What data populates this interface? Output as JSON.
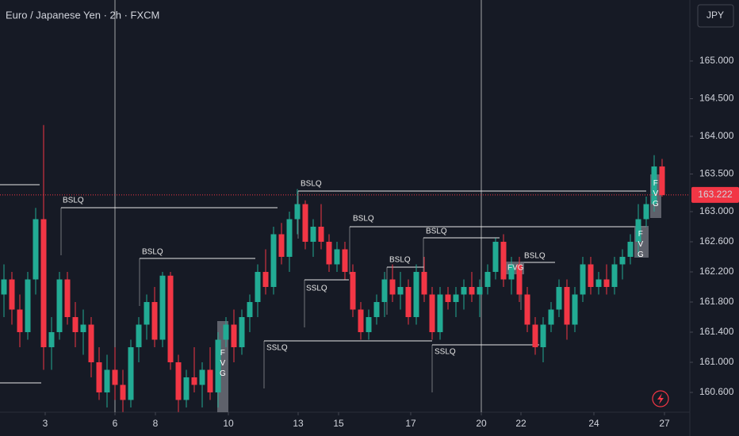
{
  "chart_data": {
    "type": "candlestick",
    "title": "Euro / Japanese Yen · 2h · FXCM",
    "currency": "JPY",
    "x": [
      0,
      1,
      2,
      3,
      4,
      5,
      6,
      7,
      8,
      9,
      10,
      11,
      12,
      13,
      14,
      15,
      16,
      17,
      18,
      19,
      20,
      21,
      22,
      23,
      24,
      25,
      26,
      27,
      28,
      29,
      30,
      31,
      32,
      33,
      34,
      35,
      36,
      37,
      38,
      39,
      40,
      41,
      42,
      43,
      44,
      45,
      46,
      47,
      48,
      49,
      50,
      51,
      52,
      53,
      54,
      55,
      56,
      57,
      58,
      59,
      60,
      61,
      62,
      63,
      64,
      65,
      66,
      67,
      68,
      69,
      70,
      71,
      72,
      73,
      74,
      75,
      76,
      77,
      78,
      79,
      80,
      81,
      82,
      83
    ],
    "open": [
      161.9,
      162.1,
      161.7,
      161.4,
      162.1,
      162.9,
      161.2,
      161.4,
      162.1,
      161.6,
      161.4,
      161.5,
      161.0,
      160.6,
      160.9,
      160.7,
      160.5,
      161.2,
      161.5,
      161.8,
      161.3,
      162.15,
      161.0,
      160.5,
      160.8,
      160.7,
      160.9,
      160.6,
      161.3,
      161.5,
      161.2,
      161.6,
      161.8,
      162.2,
      162.0,
      162.7,
      162.4,
      162.9,
      163.1,
      162.6,
      162.8,
      162.6,
      162.3,
      162.5,
      162.2,
      161.7,
      161.4,
      161.6,
      161.8,
      162.1,
      161.9,
      162.0,
      161.6,
      162.2,
      161.9,
      161.4,
      161.9,
      161.8,
      161.9,
      162.0,
      161.9,
      162.0,
      162.2,
      162.6,
      162.1,
      162.3,
      161.9,
      161.5,
      161.2,
      161.5,
      161.7,
      162.0,
      161.5,
      161.9,
      162.3,
      162.0,
      162.1,
      162.0,
      162.3,
      162.4,
      162.6,
      162.9,
      163.1,
      163.6
    ],
    "high": [
      162.3,
      162.2,
      161.9,
      162.2,
      163.05,
      164.15,
      161.6,
      162.2,
      162.2,
      161.8,
      161.7,
      161.6,
      161.2,
      161.1,
      161.2,
      160.9,
      161.3,
      161.6,
      161.9,
      162.0,
      162.2,
      162.2,
      161.1,
      160.9,
      161.2,
      161.0,
      161.2,
      161.4,
      161.6,
      161.7,
      161.7,
      161.9,
      162.3,
      162.5,
      162.8,
      162.85,
      163.0,
      163.3,
      163.15,
      162.9,
      163.1,
      162.7,
      162.6,
      162.6,
      162.3,
      161.8,
      161.7,
      161.9,
      162.2,
      162.3,
      162.2,
      162.1,
      162.3,
      162.4,
      162.0,
      162.0,
      162.0,
      162.0,
      162.1,
      162.2,
      162.1,
      162.3,
      162.65,
      162.7,
      162.4,
      162.4,
      162.0,
      161.6,
      161.6,
      161.8,
      162.1,
      162.1,
      162.0,
      162.4,
      162.4,
      162.2,
      162.3,
      162.4,
      162.5,
      162.7,
      163.1,
      163.2,
      163.75,
      163.7
    ],
    "low": [
      161.6,
      161.5,
      161.2,
      161.3,
      161.9,
      160.9,
      160.9,
      161.3,
      161.5,
      161.2,
      161.1,
      160.8,
      160.5,
      160.4,
      160.5,
      160.34,
      160.4,
      161.0,
      161.3,
      161.2,
      161.2,
      160.9,
      160.34,
      160.4,
      160.6,
      160.4,
      160.5,
      160.4,
      161.2,
      161.0,
      161.1,
      161.4,
      161.6,
      161.9,
      161.9,
      162.3,
      162.2,
      162.7,
      162.5,
      162.4,
      162.5,
      162.2,
      162.2,
      162.1,
      161.6,
      161.3,
      161.3,
      161.5,
      161.6,
      161.8,
      161.7,
      161.5,
      161.5,
      161.8,
      161.3,
      161.3,
      161.7,
      161.6,
      161.7,
      161.8,
      161.6,
      161.9,
      162.1,
      162.0,
      161.9,
      161.8,
      161.4,
      161.1,
      161.0,
      161.4,
      161.6,
      161.3,
      161.4,
      161.8,
      161.9,
      161.9,
      161.9,
      161.9,
      162.1,
      162.3,
      162.4,
      162.8,
      163.0,
      163.2
    ],
    "close": [
      162.1,
      161.7,
      161.4,
      162.1,
      162.9,
      161.2,
      161.4,
      162.1,
      161.6,
      161.4,
      161.5,
      161.0,
      160.6,
      160.9,
      160.7,
      160.5,
      161.2,
      161.5,
      161.8,
      161.3,
      162.15,
      161.0,
      160.5,
      160.8,
      160.7,
      160.9,
      160.6,
      161.3,
      161.5,
      161.2,
      161.6,
      161.8,
      162.2,
      162.0,
      162.7,
      162.4,
      162.9,
      163.1,
      162.6,
      162.8,
      162.6,
      162.3,
      162.5,
      162.2,
      161.7,
      161.4,
      161.6,
      161.8,
      162.1,
      161.9,
      162.0,
      161.6,
      162.2,
      161.9,
      161.4,
      161.9,
      161.8,
      161.9,
      162.0,
      161.9,
      162.0,
      162.2,
      162.6,
      162.1,
      162.3,
      161.9,
      161.5,
      161.2,
      161.5,
      161.7,
      162.0,
      161.5,
      161.9,
      162.3,
      162.0,
      162.1,
      162.0,
      162.3,
      162.4,
      162.6,
      162.9,
      163.1,
      163.6,
      163.22
    ],
    "up_color": "#22ab94",
    "down_color": "#f23645",
    "xlim": [
      -0.5,
      86.5
    ],
    "xticks": [
      {
        "value": 5.2,
        "label": "3"
      },
      {
        "value": 14,
        "label": "6"
      },
      {
        "value": 19.1,
        "label": "8"
      },
      {
        "value": 28.3,
        "label": "10"
      },
      {
        "value": 37.1,
        "label": "13"
      },
      {
        "value": 42.2,
        "label": "15"
      },
      {
        "value": 51.3,
        "label": "17"
      },
      {
        "value": 60.2,
        "label": "20"
      },
      {
        "value": 65.2,
        "label": "22"
      },
      {
        "value": 74.4,
        "label": "24"
      },
      {
        "value": 83.3,
        "label": "27"
      }
    ],
    "ylim": [
      160.337,
      165.81
    ],
    "yticks": [
      {
        "value": 165,
        "label": "165.000"
      },
      {
        "value": 164.5,
        "label": "164.500"
      },
      {
        "value": 164,
        "label": "164.000"
      },
      {
        "value": 163.5,
        "label": "163.500"
      },
      {
        "value": 163,
        "label": "163.000"
      },
      {
        "value": 162.6,
        "label": "162.600"
      },
      {
        "value": 162.2,
        "label": "162.200"
      },
      {
        "value": 161.8,
        "label": "161.800"
      },
      {
        "value": 161.4,
        "label": "161.400"
      },
      {
        "value": 161,
        "label": "161.000"
      },
      {
        "value": 160.6,
        "label": "160.600"
      }
    ],
    "last_price": 163.222,
    "annotations": [
      "BSLQ",
      "BSLQ",
      "BSLQ",
      "BSLQ",
      "BSLQ",
      "BSLQ",
      "BSLQ",
      "SSLQ",
      "SSLQ",
      "SSLQ",
      "FVG",
      "FVG",
      "FVG",
      "FVG"
    ]
  }
}
